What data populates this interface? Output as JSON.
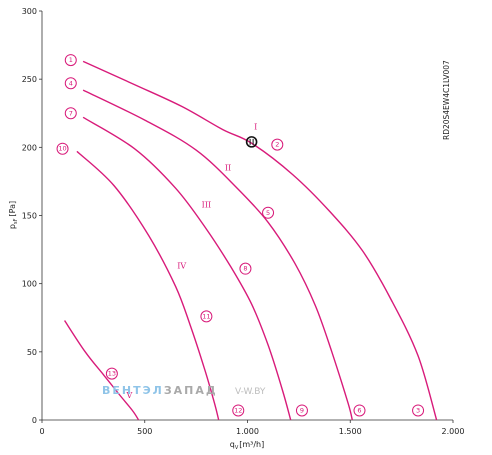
{
  "chart_data": {
    "type": "line",
    "xlabel_main": "q",
    "xlabel_sub": "V",
    "xlabel_unit": "[m³/h]",
    "ylabel_main": "p",
    "ylabel_sub": "sF",
    "ylabel_unit": "[Pa]",
    "xlim": [
      0,
      2000
    ],
    "ylim": [
      0,
      300
    ],
    "x_ticks": [
      {
        "v": 0,
        "label": "0"
      },
      {
        "v": 500,
        "label": "500"
      },
      {
        "v": 1000,
        "label": "1.000"
      },
      {
        "v": 1500,
        "label": "1.500"
      },
      {
        "v": 2000,
        "label": "2.000"
      }
    ],
    "y_ticks": [
      {
        "v": 0,
        "label": "0"
      },
      {
        "v": 50,
        "label": "50"
      },
      {
        "v": 100,
        "label": "100"
      },
      {
        "v": 150,
        "label": "150"
      },
      {
        "v": 200,
        "label": "200"
      },
      {
        "v": 250,
        "label": "250"
      },
      {
        "v": 300,
        "label": "300"
      }
    ],
    "grid": false,
    "model_label": "RD20S4EW4C1LV007",
    "series": [
      {
        "roman": "I",
        "points": [
          [
            200,
            263
          ],
          [
            450,
            246
          ],
          [
            680,
            230
          ],
          [
            880,
            213
          ],
          [
            1020,
            203
          ],
          [
            1220,
            180
          ],
          [
            1400,
            153
          ],
          [
            1560,
            124
          ],
          [
            1700,
            88
          ],
          [
            1830,
            47
          ],
          [
            1920,
            0
          ]
        ]
      },
      {
        "roman": "II",
        "points": [
          [
            200,
            242
          ],
          [
            500,
            220
          ],
          [
            750,
            198
          ],
          [
            950,
            170
          ],
          [
            1100,
            145
          ],
          [
            1230,
            115
          ],
          [
            1330,
            84
          ],
          [
            1410,
            50
          ],
          [
            1490,
            12
          ],
          [
            1510,
            0
          ]
        ]
      },
      {
        "roman": "III",
        "points": [
          [
            200,
            222
          ],
          [
            450,
            199
          ],
          [
            650,
            170
          ],
          [
            800,
            140
          ],
          [
            920,
            112
          ],
          [
            1020,
            85
          ],
          [
            1100,
            55
          ],
          [
            1170,
            22
          ],
          [
            1210,
            0
          ]
        ]
      },
      {
        "roman": "IV",
        "points": [
          [
            170,
            197
          ],
          [
            350,
            172
          ],
          [
            520,
            135
          ],
          [
            650,
            98
          ],
          [
            720,
            70
          ],
          [
            790,
            38
          ],
          [
            840,
            12
          ],
          [
            860,
            0
          ]
        ]
      },
      {
        "roman": "V",
        "points": [
          [
            110,
            73
          ],
          [
            210,
            50
          ],
          [
            300,
            33
          ],
          [
            380,
            18
          ],
          [
            440,
            7
          ],
          [
            470,
            0
          ]
        ]
      }
    ],
    "roman_labels": [
      {
        "text": "I",
        "x": 1040,
        "y": 213
      },
      {
        "text": "II",
        "x": 905,
        "y": 183
      },
      {
        "text": "III",
        "x": 800,
        "y": 156
      },
      {
        "text": "IV",
        "x": 680,
        "y": 111
      },
      {
        "text": "V",
        "x": 425,
        "y": 16
      }
    ],
    "markers": [
      {
        "label": "1",
        "x": 140,
        "y": 264
      },
      {
        "label": "2",
        "x": 1145,
        "y": 202
      },
      {
        "label": "3",
        "x": 1830,
        "y": 7
      },
      {
        "label": "4",
        "x": 140,
        "y": 247
      },
      {
        "label": "5",
        "x": 1100,
        "y": 152
      },
      {
        "label": "6",
        "x": 1545,
        "y": 7
      },
      {
        "label": "7",
        "x": 140,
        "y": 225
      },
      {
        "label": "8",
        "x": 990,
        "y": 111
      },
      {
        "label": "9",
        "x": 1265,
        "y": 7
      },
      {
        "label": "10",
        "x": 100,
        "y": 199
      },
      {
        "label": "11",
        "x": 800,
        "y": 76
      },
      {
        "label": "12",
        "x": 955,
        "y": 7
      },
      {
        "label": "13",
        "x": 340,
        "y": 34
      }
    ],
    "operating_point": {
      "x": 1020,
      "y": 204
    }
  },
  "watermark": {
    "brand": "ВЕНТЭЛЗАПАД",
    "site": "V-W.BY"
  }
}
